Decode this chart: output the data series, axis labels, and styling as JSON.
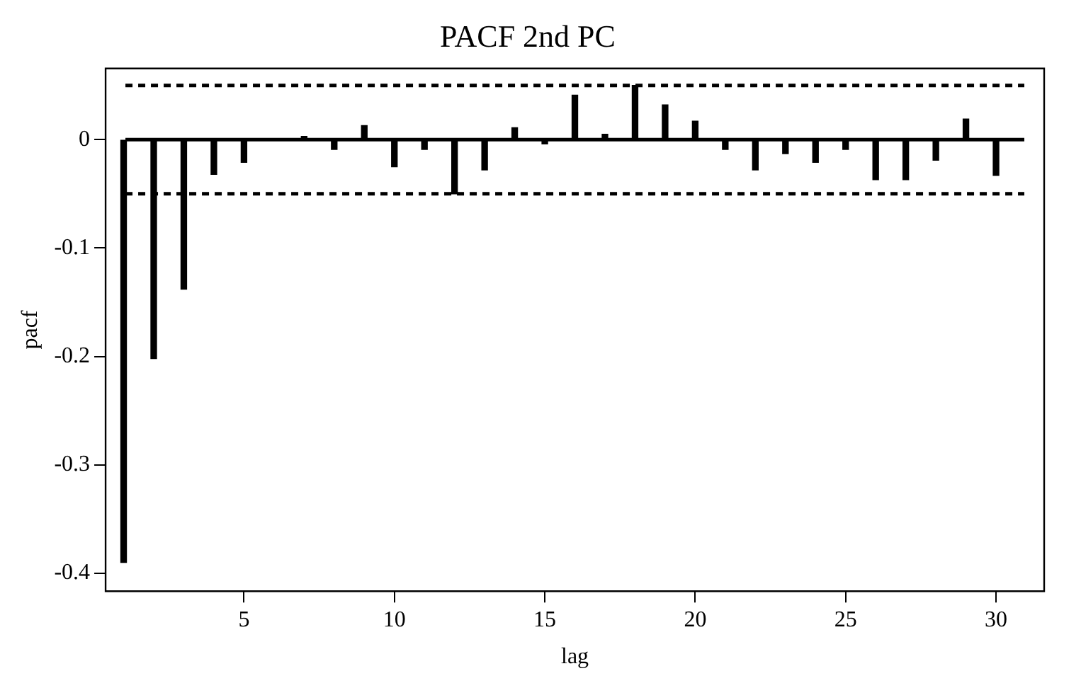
{
  "chart_data": {
    "type": "bar",
    "title": "PACF 2nd PC",
    "xlabel": "lag",
    "ylabel": "pacf",
    "x": [
      1,
      2,
      3,
      4,
      5,
      6,
      7,
      8,
      9,
      10,
      11,
      12,
      13,
      14,
      15,
      16,
      17,
      18,
      19,
      20,
      21,
      22,
      23,
      24,
      25,
      26,
      27,
      28,
      29,
      30
    ],
    "series": [
      {
        "color": "#000000",
        "values": [
          -0.39,
          -0.202,
          -0.138,
          -0.032,
          -0.021,
          0,
          0.003,
          -0.009,
          0.013,
          -0.025,
          -0.009,
          -0.05,
          -0.028,
          0.011,
          -0.004,
          0.041,
          0.005,
          0.05,
          0.032,
          0.017,
          -0.009,
          -0.028,
          -0.013,
          -0.021,
          -0.009,
          -0.037,
          -0.037,
          -0.019,
          0.019,
          -0.033
        ]
      }
    ],
    "xlim": [
      0.4,
      31.6
    ],
    "xticks": [
      5,
      10,
      15,
      20,
      25,
      30
    ],
    "ylim": [
      -0.4165,
      0.0656
    ],
    "yticks": [
      0,
      -0.1,
      -0.2,
      -0.3,
      -0.4
    ],
    "ref_lines": [
      {
        "axis": "y",
        "value": 0.05,
        "line_style": "dashed"
      },
      {
        "axis": "y",
        "value": -0.05,
        "line_style": "dashed"
      },
      {
        "axis": "y",
        "value": 0,
        "line_style": "solid"
      }
    ],
    "grid": false,
    "legend": false
  }
}
